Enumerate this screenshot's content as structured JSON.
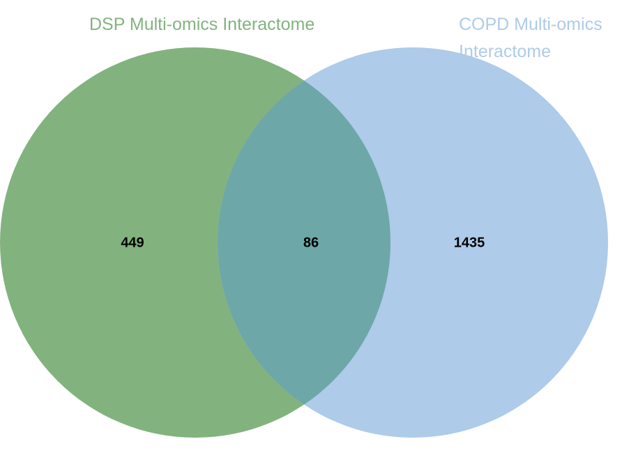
{
  "sets": [
    {
      "name": "DSP Multi-omics Interactome",
      "color": "#82b37e",
      "only_count": "449"
    },
    {
      "name_lines": [
        "COPD Multi-omics",
        "Interactome"
      ],
      "color": "#aecbe9",
      "only_count": "1435"
    }
  ],
  "overlap": {
    "count": "86",
    "color": "#6ea7a8"
  }
}
